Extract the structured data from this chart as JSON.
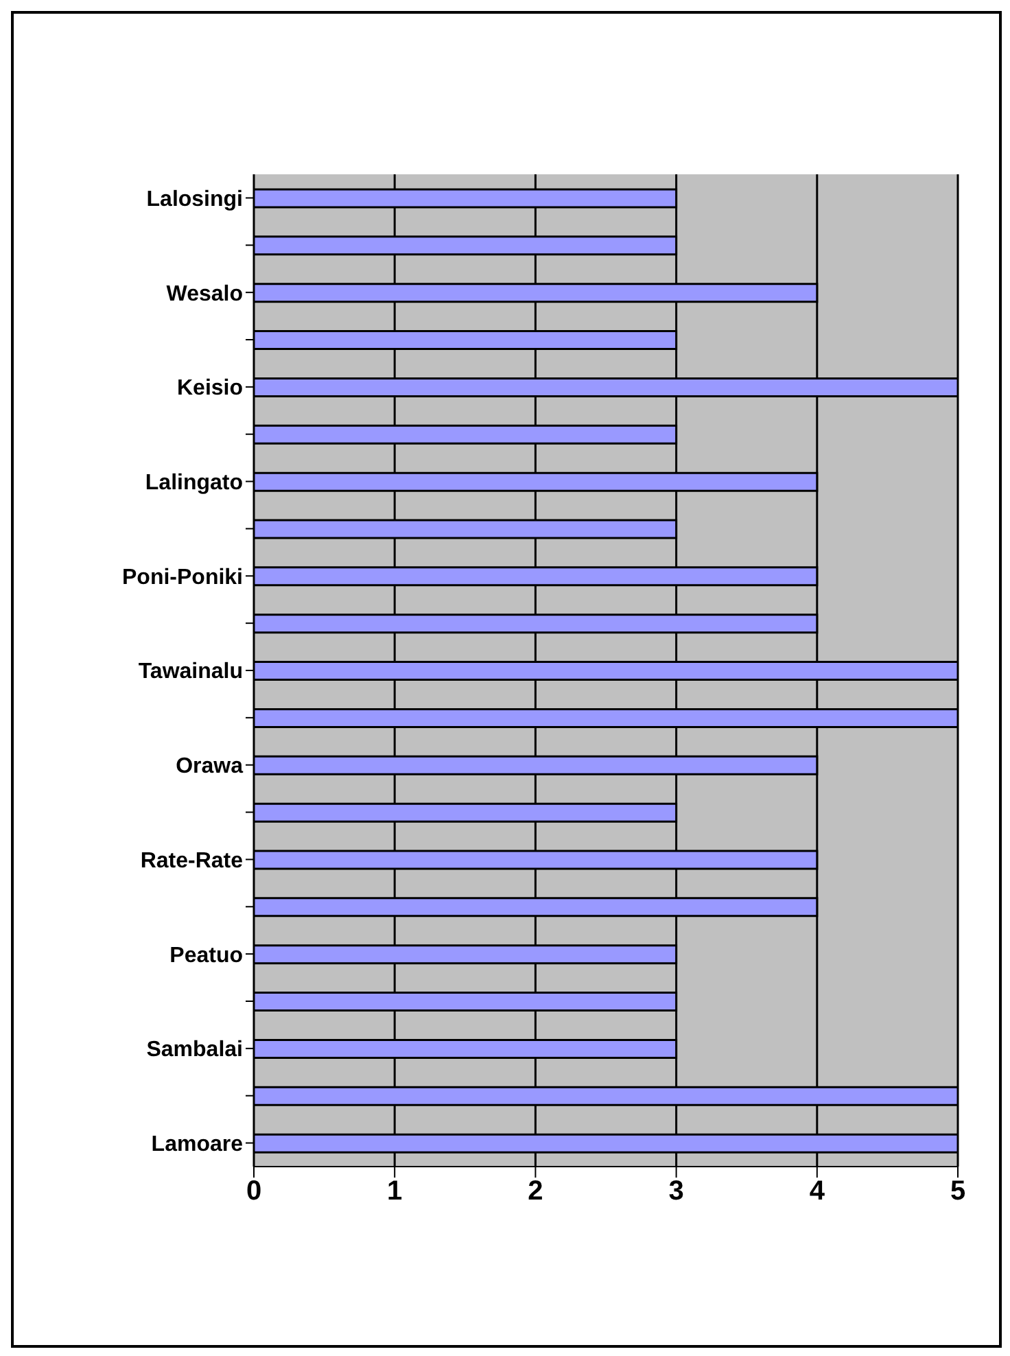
{
  "chart_data": {
    "type": "bar",
    "orientation": "horizontal",
    "categories": [
      "Lalosingi",
      null,
      "Wesalo",
      null,
      "Keisio",
      null,
      "Lalingato",
      null,
      "Poni-Poniki",
      null,
      "Tawainalu",
      null,
      "Orawa",
      null,
      "Rate-Rate",
      null,
      "Peatuo",
      null,
      "Sambalai",
      null,
      "Lamoare"
    ],
    "values": [
      3,
      3,
      4,
      3,
      5,
      3,
      4,
      3,
      4,
      4,
      5,
      5,
      4,
      3,
      4,
      4,
      3,
      3,
      3,
      5,
      5
    ],
    "color": "#9999ff",
    "xlim": [
      0,
      5
    ],
    "xticks": [
      0,
      1,
      2,
      3,
      4,
      5
    ],
    "grid": "x",
    "legend": false
  }
}
